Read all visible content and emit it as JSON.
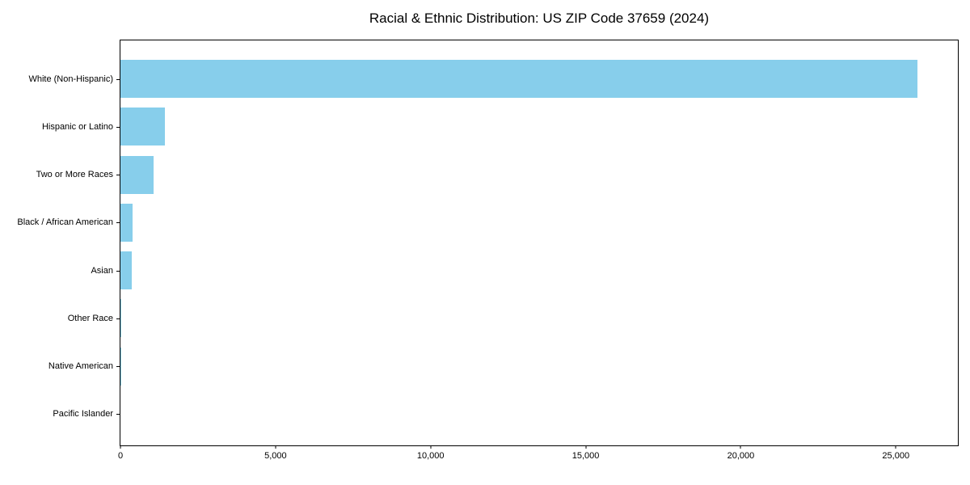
{
  "title": "Racial & Ethnic Distribution: US ZIP Code 37659 (2024)",
  "colors": {
    "bar": "#87CEEB",
    "axis": "#000000",
    "background": "#FFFFFF",
    "text": "#000000"
  },
  "chart_data": {
    "type": "bar",
    "orientation": "horizontal",
    "title": "Racial & Ethnic Distribution: US ZIP Code 37659 (2024)",
    "categories": [
      "White (Non-Hispanic)",
      "Hispanic or Latino",
      "Two or More Races",
      "Black / African American",
      "Asian",
      "Other Race",
      "Native American",
      "Pacific Islander"
    ],
    "values": [
      25700,
      1430,
      1070,
      400,
      370,
      30,
      10,
      0
    ],
    "xlabel": "",
    "ylabel": "",
    "xlim": [
      0,
      27000
    ],
    "xticks": [
      0,
      5000,
      10000,
      15000,
      20000,
      25000
    ],
    "xtick_labels": [
      "0",
      "5,000",
      "10,000",
      "15,000",
      "20,000",
      "25,000"
    ],
    "bar_color": "#87CEEB",
    "grid": false,
    "legend": false
  }
}
